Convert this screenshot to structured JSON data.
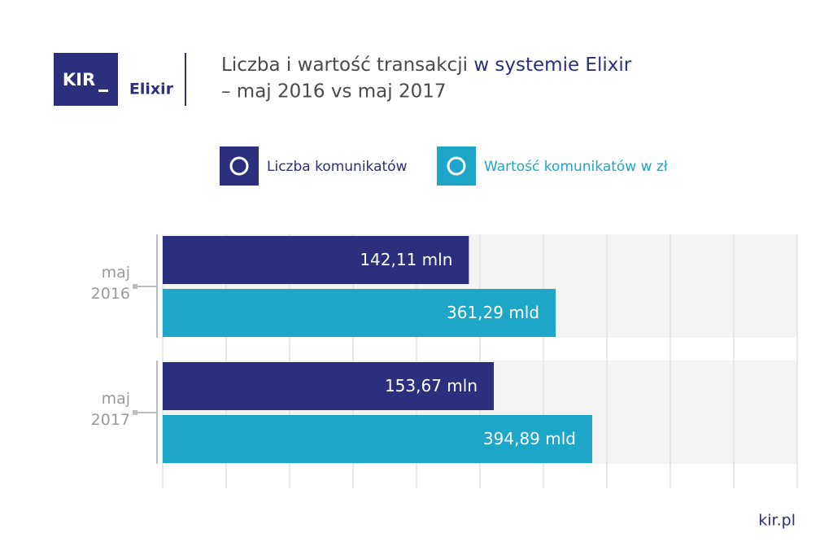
{
  "logo": {
    "mark": "KIR",
    "name": "Elixir"
  },
  "chart_data": {
    "type": "bar",
    "orientation": "horizontal",
    "title": [
      "Liczba i wartość transakcji",
      "w systemie Elixir"
    ],
    "subtitle": "– maj 2016 vs maj 2017",
    "categories": [
      "maj 2016",
      "maj 2017"
    ],
    "series": [
      {
        "name": "Liczba komunikatów",
        "color": "#2b2f7e",
        "values": [
          142.11,
          153.67
        ],
        "value_labels": [
          "142,11 mln",
          "153,67 mln"
        ]
      },
      {
        "name": "Wartość komunikatów w zł",
        "color": "#1ea6c9",
        "values": [
          361.29,
          394.89
        ],
        "value_labels": [
          "361,29 mld",
          "394,89 mld"
        ]
      }
    ]
  },
  "footer": "kir.pl"
}
